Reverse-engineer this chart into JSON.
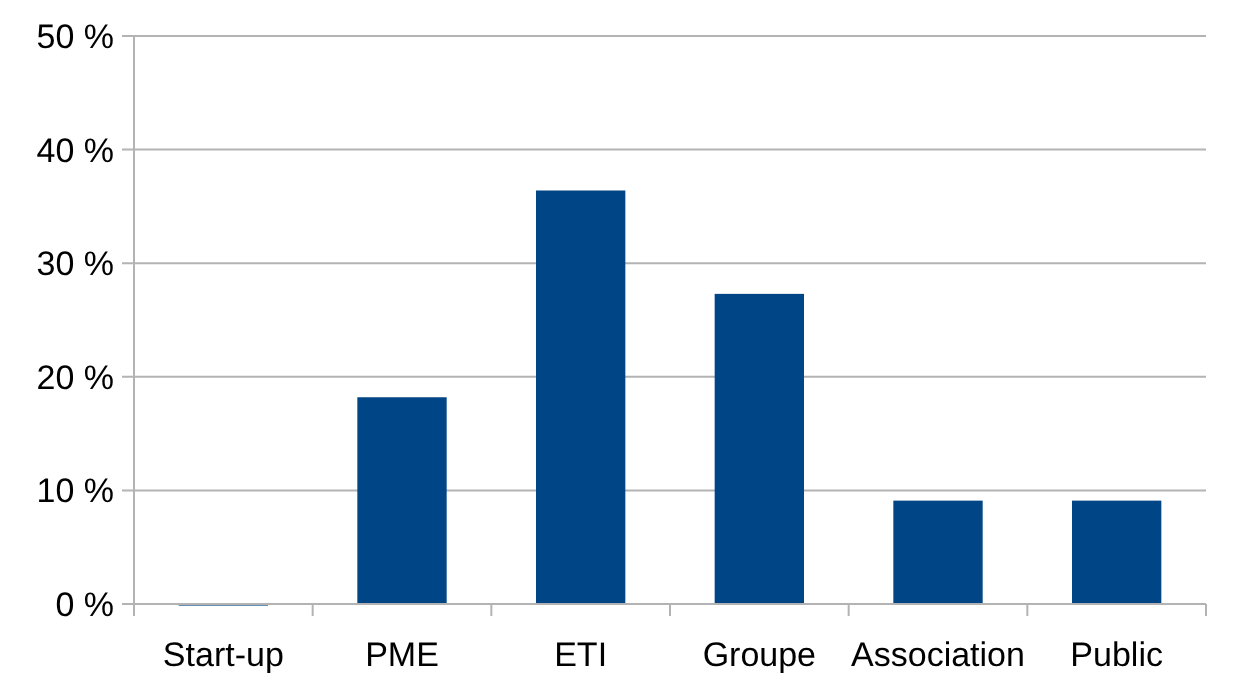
{
  "chart_data": {
    "type": "bar",
    "categories": [
      "Start-up",
      "PME",
      "ETI",
      "Groupe",
      "Association",
      "Public"
    ],
    "values": [
      0,
      18.2,
      36.4,
      27.3,
      9.1,
      9.1
    ],
    "color": "#004586",
    "ylim": [
      0,
      50
    ],
    "yticks": [
      {
        "value": 0,
        "label": "0 %"
      },
      {
        "value": 10,
        "label": "10 %"
      },
      {
        "value": 20,
        "label": "20 %"
      },
      {
        "value": 30,
        "label": "30 %"
      },
      {
        "value": 40,
        "label": "40 %"
      },
      {
        "value": 50,
        "label": "50 %"
      }
    ],
    "grid": "y"
  }
}
